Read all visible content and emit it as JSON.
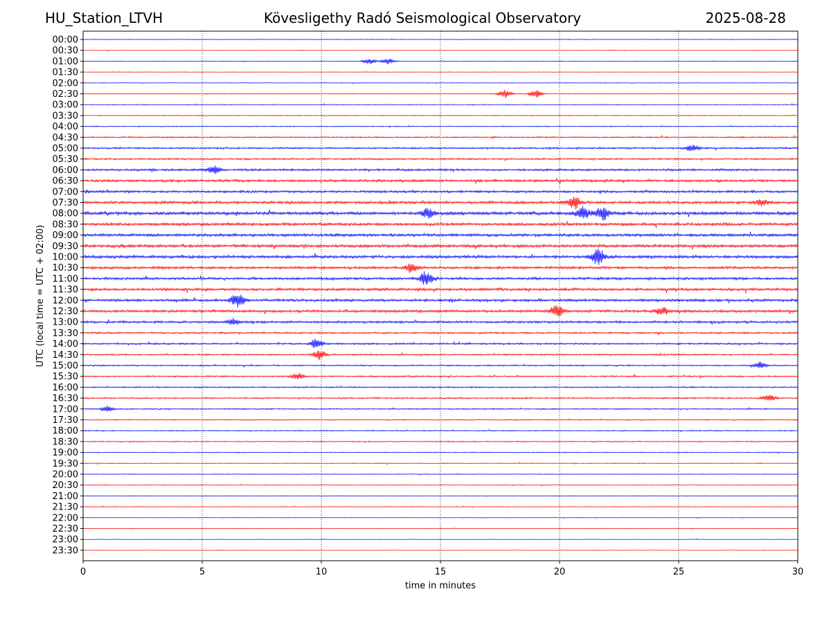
{
  "header": {
    "station": "HU_Station_LTVH",
    "title": "Kövesligethy Radó Seismological Observatory",
    "date": "2025-08-28"
  },
  "colors": {
    "even_trace": "#0000ff",
    "odd_trace": "#ff0000",
    "axis": "#000000",
    "gridline": "#000000"
  },
  "chart_data": {
    "type": "line",
    "xlabel": "time in minutes",
    "ylabel": "UTC (local time = UTC + 02:00)",
    "xlim": [
      0,
      30
    ],
    "x_ticks": [
      0,
      5,
      10,
      15,
      20,
      25,
      30
    ],
    "grid": "vertical dotted lines at each x tick",
    "row_labels": [
      "00:00",
      "00:30",
      "01:00",
      "01:30",
      "02:00",
      "02:30",
      "03:00",
      "03:30",
      "04:00",
      "04:30",
      "05:00",
      "05:30",
      "06:00",
      "06:30",
      "07:00",
      "07:30",
      "08:00",
      "08:30",
      "09:00",
      "09:30",
      "10:00",
      "10:30",
      "11:00",
      "11:30",
      "12:00",
      "12:30",
      "13:00",
      "13:30",
      "14:00",
      "14:30",
      "15:00",
      "15:30",
      "16:00",
      "16:30",
      "17:00",
      "17:30",
      "18:00",
      "18:30",
      "19:00",
      "19:30",
      "20:00",
      "20:30",
      "21:00",
      "21:30",
      "22:00",
      "22:30",
      "23:00",
      "23:30"
    ],
    "row_noise_level": [
      0.5,
      0.5,
      0.5,
      0.4,
      0.6,
      0.6,
      0.7,
      0.7,
      0.8,
      1.2,
      1.5,
      1.5,
      1.8,
      2.2,
      2.0,
      2.3,
      2.8,
      2.4,
      2.5,
      2.6,
      2.5,
      2.3,
      2.2,
      2.3,
      2.2,
      2.3,
      2.0,
      1.5,
      1.5,
      1.3,
      1.2,
      1.3,
      1.2,
      1.3,
      1.1,
      0.9,
      0.9,
      0.9,
      0.7,
      0.7,
      0.6,
      0.6,
      0.5,
      0.6,
      0.5,
      0.5,
      0.4,
      0.4
    ],
    "events": [
      {
        "row": "01:00",
        "minute": 12.0,
        "amplitude": 4
      },
      {
        "row": "01:00",
        "minute": 12.8,
        "amplitude": 4
      },
      {
        "row": "02:30",
        "minute": 17.7,
        "amplitude": 6
      },
      {
        "row": "02:30",
        "minute": 19.0,
        "amplitude": 6
      },
      {
        "row": "05:00",
        "minute": 25.6,
        "amplitude": 5
      },
      {
        "row": "06:00",
        "minute": 5.5,
        "amplitude": 6
      },
      {
        "row": "07:30",
        "minute": 20.6,
        "amplitude": 9
      },
      {
        "row": "07:30",
        "minute": 28.5,
        "amplitude": 5
      },
      {
        "row": "08:00",
        "minute": 14.5,
        "amplitude": 7
      },
      {
        "row": "08:00",
        "minute": 21.0,
        "amplitude": 9
      },
      {
        "row": "08:00",
        "minute": 21.8,
        "amplitude": 11
      },
      {
        "row": "10:00",
        "minute": 21.6,
        "amplitude": 12
      },
      {
        "row": "10:30",
        "minute": 13.8,
        "amplitude": 7
      },
      {
        "row": "11:00",
        "minute": 14.4,
        "amplitude": 10
      },
      {
        "row": "12:00",
        "minute": 6.5,
        "amplitude": 10
      },
      {
        "row": "12:30",
        "minute": 19.9,
        "amplitude": 9
      },
      {
        "row": "12:30",
        "minute": 24.3,
        "amplitude": 6
      },
      {
        "row": "13:00",
        "minute": 6.3,
        "amplitude": 5
      },
      {
        "row": "14:00",
        "minute": 9.8,
        "amplitude": 7
      },
      {
        "row": "14:30",
        "minute": 9.9,
        "amplitude": 7
      },
      {
        "row": "15:00",
        "minute": 28.4,
        "amplitude": 5
      },
      {
        "row": "15:30",
        "minute": 9.0,
        "amplitude": 4
      },
      {
        "row": "16:30",
        "minute": 28.8,
        "amplitude": 4
      },
      {
        "row": "17:00",
        "minute": 1.0,
        "amplitude": 4
      }
    ]
  }
}
